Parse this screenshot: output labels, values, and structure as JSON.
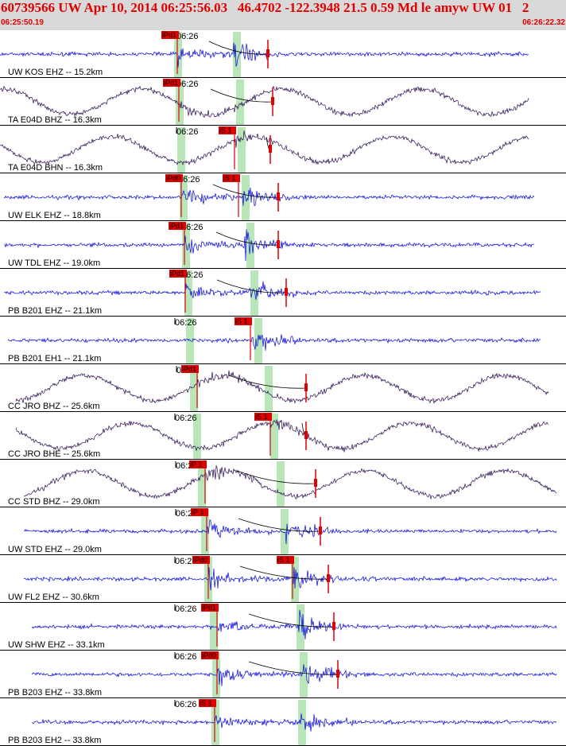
{
  "header": {
    "title": "60739566 UW Apr 10, 2014 06:25:56.03   46.4702 -122.3948 21.5 0.59 Md le amyw UW 01   2",
    "time_start": "06:25:50.19",
    "time_end": "06:26:22.32"
  },
  "colors": {
    "header_bg": "#d9d9d9",
    "header_text": "#e00000",
    "trace_high": "#0000dd",
    "trace_low": "#2a0a50",
    "pick": "#e00000",
    "band": "#b8e6b8",
    "separator": "#000000"
  },
  "chart_data": {
    "type": "line",
    "x_range": [
      "06:25:50.19",
      "06:26:22.32"
    ],
    "tick_label": "06:26",
    "traces": [
      {
        "label": "UW KOS EHZ -- 15.2km",
        "pick_labels": [
          "iPd1"
        ],
        "style": "high"
      },
      {
        "label": "TA E04D BHZ -- 16.3km",
        "pick_labels": [
          "iPd1"
        ],
        "style": "low"
      },
      {
        "label": "TA E04D BHN -- 16.3km",
        "pick_labels": [
          "iS 1"
        ],
        "style": "low"
      },
      {
        "label": "UW ELK EHZ -- 18.8km",
        "pick_labels": [
          "iPd0",
          "iS 1"
        ],
        "style": "high"
      },
      {
        "label": "UW TDL EHZ -- 19.0km",
        "pick_labels": [
          "iPd1"
        ],
        "style": "high"
      },
      {
        "label": "PB B201 EHZ -- 21.1km",
        "pick_labels": [
          "iPd1"
        ],
        "style": "high"
      },
      {
        "label": "PB B201 EH1 -- 21.1km",
        "pick_labels": [
          "iS 1"
        ],
        "style": "high"
      },
      {
        "label": "CC JRO BHZ -- 25.6km",
        "pick_labels": [
          "iPd1"
        ],
        "style": "low"
      },
      {
        "label": "CC JRO BHE -- 25.6km",
        "pick_labels": [
          "iS 1"
        ],
        "style": "low"
      },
      {
        "label": "CC STD BHZ -- 29.0km",
        "pick_labels": [
          "iP 1"
        ],
        "style": "low"
      },
      {
        "label": "UW STD EHZ -- 29.0km",
        "pick_labels": [
          "iP 1"
        ],
        "style": "high"
      },
      {
        "label": "UW FL2 EHZ -- 30.6km",
        "pick_labels": [
          "iPd0",
          "iS 1"
        ],
        "style": "high"
      },
      {
        "label": "UW SHW EHZ -- 33.1km",
        "pick_labels": [
          "iPd1"
        ],
        "style": "high"
      },
      {
        "label": "PB B203 EHZ -- 33.8km",
        "pick_labels": [
          "iPd0"
        ],
        "style": "high"
      },
      {
        "label": "PB B203 EH2 -- 33.8km",
        "pick_labels": [
          "iS 1"
        ],
        "style": "high"
      }
    ]
  }
}
